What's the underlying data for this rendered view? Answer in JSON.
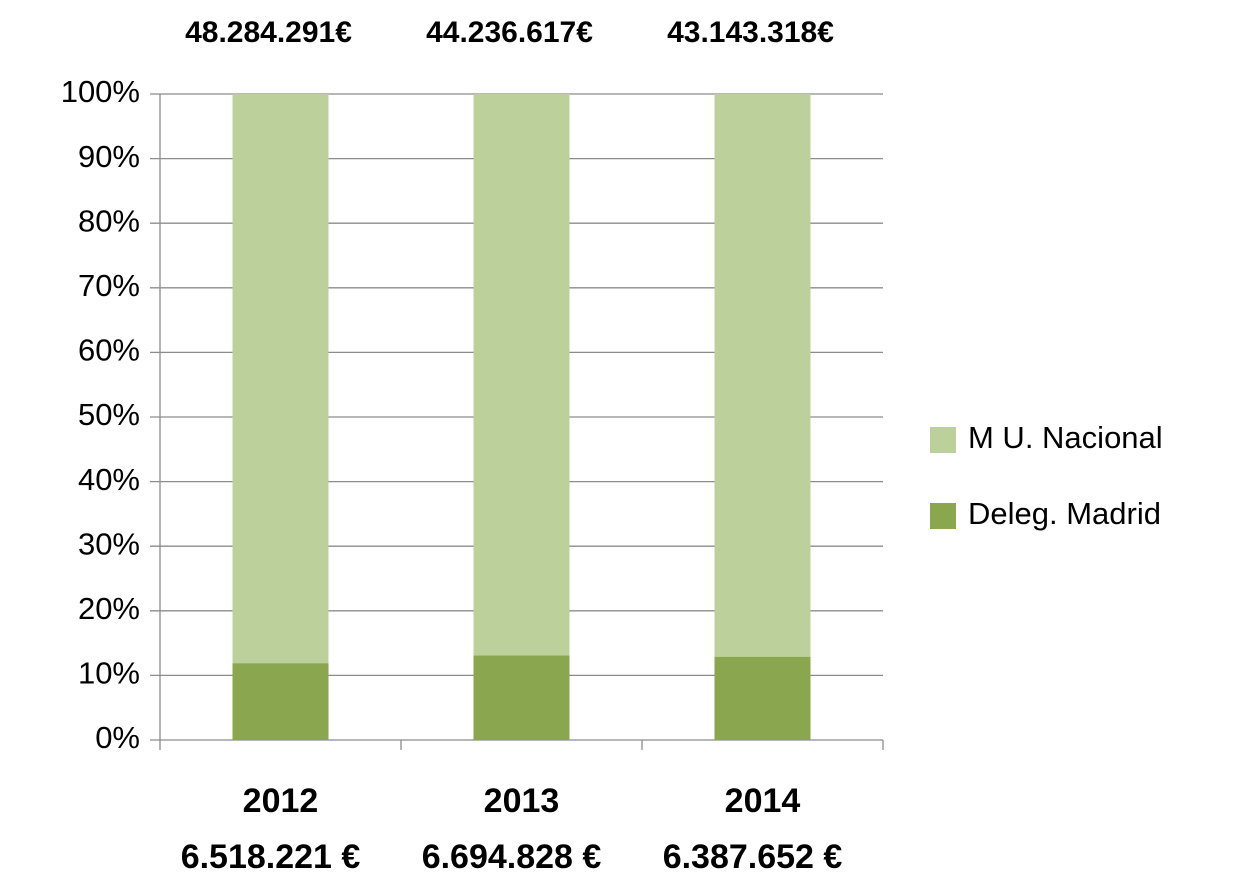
{
  "chart_data": {
    "type": "stacked_bar_percent",
    "categories": [
      "2012",
      "2013",
      "2014"
    ],
    "series": [
      {
        "name": "Deleg. Madrid",
        "color": "#8aa64e",
        "values": [
          11.9,
          13.1,
          12.9
        ]
      },
      {
        "name": "M U. Nacional",
        "color": "#bcd09b",
        "values": [
          88.1,
          86.9,
          87.1
        ]
      }
    ],
    "top_labels": [
      "48.284.291€",
      "44.236.617€",
      "43.143.318€"
    ],
    "bottom_labels": [
      "6.518.221 €",
      "6.694.828 €",
      "6.387.652 €"
    ],
    "ylim": [
      0,
      100
    ],
    "yticks": [
      {
        "value": 0,
        "label": "0%"
      },
      {
        "value": 10,
        "label": "10%"
      },
      {
        "value": 20,
        "label": "20%"
      },
      {
        "value": 30,
        "label": "30%"
      },
      {
        "value": 40,
        "label": "40%"
      },
      {
        "value": 50,
        "label": "50%"
      },
      {
        "value": 60,
        "label": "60%"
      },
      {
        "value": 70,
        "label": "70%"
      },
      {
        "value": 80,
        "label": "80%"
      },
      {
        "value": 90,
        "label": "90%"
      },
      {
        "value": 100,
        "label": "100%"
      }
    ],
    "grid": true,
    "legend": "right"
  }
}
